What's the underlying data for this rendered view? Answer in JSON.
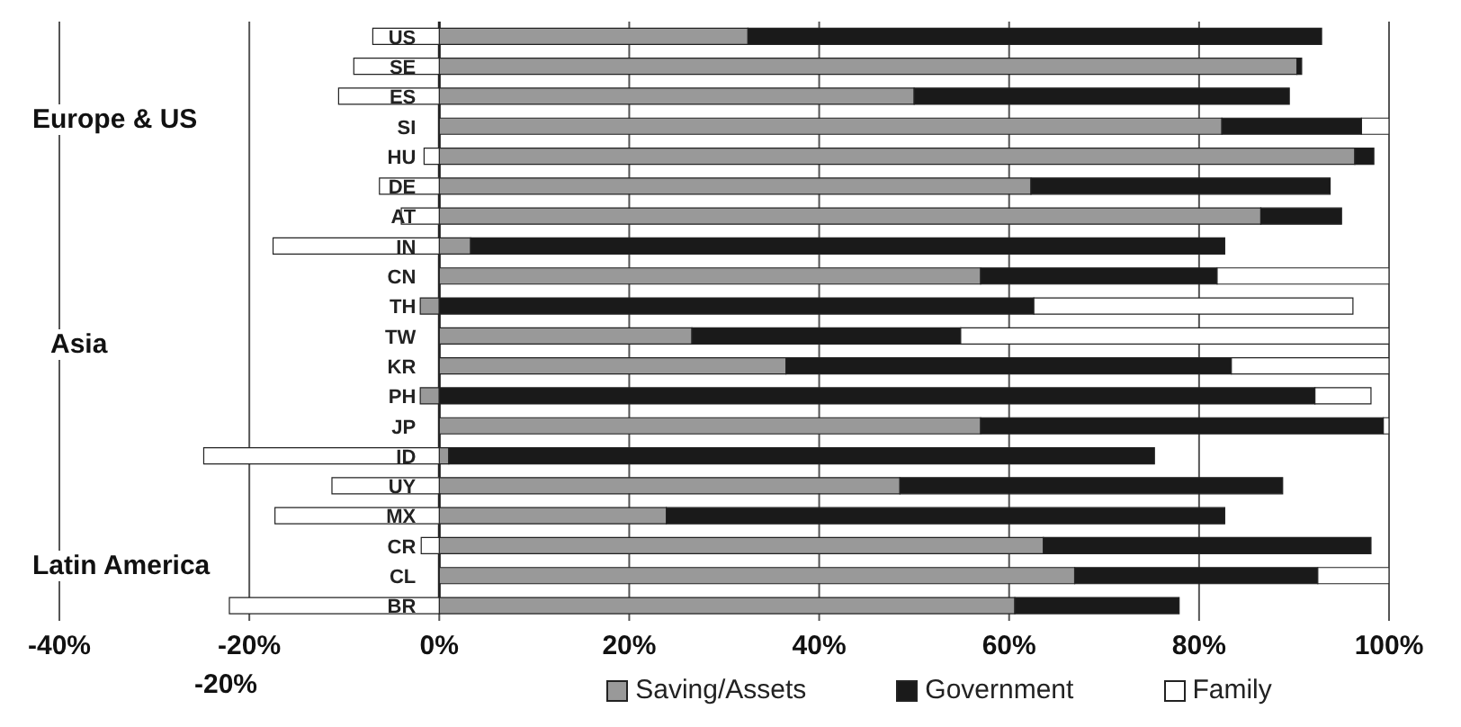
{
  "chart_data": {
    "type": "bar",
    "orientation": "horizontal",
    "stacked": true,
    "categories": [
      "US",
      "SE",
      "ES",
      "SI",
      "HU",
      "DE",
      "AT",
      "IN",
      "CN",
      "TH",
      "TW",
      "KR",
      "PH",
      "JP",
      "ID",
      "UY",
      "MX",
      "CR",
      "CL",
      "BR"
    ],
    "series": [
      {
        "name": "Saving/Assets",
        "color": "#999999",
        "values": [
          32.5,
          90.3,
          50,
          82.4,
          96.4,
          62.3,
          86.5,
          3.3,
          57,
          -2,
          26.6,
          36.5,
          -2,
          57,
          1,
          48.5,
          23.9,
          63.6,
          66.9,
          60.6
        ]
      },
      {
        "name": "Government",
        "color": "#1a1a1a",
        "values": [
          60.4,
          0.5,
          39.5,
          14.7,
          2,
          31.5,
          8.5,
          79.4,
          24.9,
          62.6,
          28.3,
          46.9,
          92.2,
          42.4,
          74.3,
          40.3,
          58.8,
          34.5,
          25.6,
          17.3
        ]
      },
      {
        "name": "Family",
        "color": "#ffffff",
        "values": [
          -7,
          -9,
          -10.6,
          2.9,
          -1.6,
          -6.3,
          -4,
          -17.5,
          18.1,
          33.6,
          45.1,
          16.6,
          5.9,
          0.6,
          -24.8,
          -11.3,
          -17.3,
          -1.9,
          7.5,
          -22.1
        ]
      }
    ],
    "xlim": [
      -40,
      100
    ],
    "xticks": [
      {
        "value": -40,
        "label": "-40%"
      },
      {
        "value": -20,
        "label": "-20%"
      },
      {
        "value": 0,
        "label": "0%"
      },
      {
        "value": 20,
        "label": "20%"
      },
      {
        "value": 40,
        "label": "40%"
      },
      {
        "value": 60,
        "label": "60%"
      },
      {
        "value": 80,
        "label": "80%"
      },
      {
        "value": 100,
        "label": "100%"
      }
    ],
    "grid": "x",
    "legend": "bottom",
    "annotations": [
      "Europe & US",
      "Asia",
      "Latin America",
      "-20%"
    ]
  }
}
